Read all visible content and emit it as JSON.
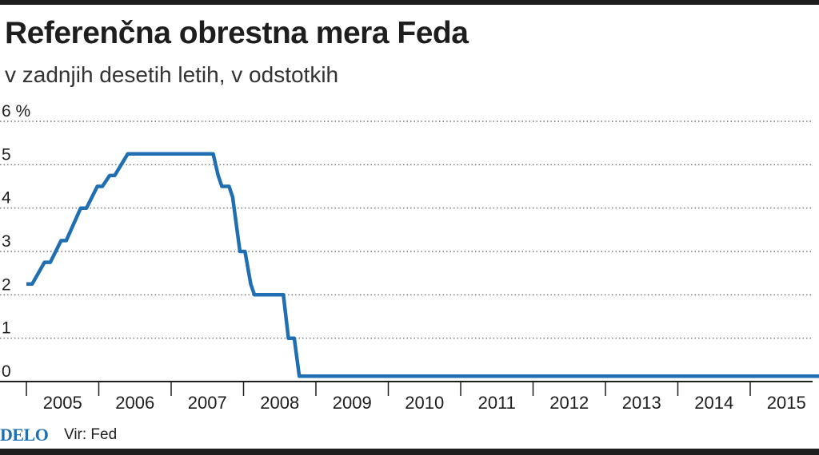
{
  "header": {
    "title": "Referenčna obrestna mera Feda",
    "subtitle": "v zadnjih desetih letih, v odstotkih"
  },
  "footer": {
    "logo": "DELO",
    "source": "Vir: Fed"
  },
  "colors": {
    "line": "#1f6fb2",
    "logo": "#1f6fb2",
    "text": "#1e1e1e",
    "grid": "#555555"
  },
  "chart_data": {
    "type": "line",
    "title": "Referenčna obrestna mera Feda",
    "subtitle": "v zadnjih desetih letih, v odstotkih",
    "ylim": [
      0,
      6
    ],
    "xlim": [
      2004.5,
      2015.5
    ],
    "y_ticks": [
      {
        "value": 6,
        "label": "6 %"
      },
      {
        "value": 5,
        "label": "5"
      },
      {
        "value": 4,
        "label": "4"
      },
      {
        "value": 3,
        "label": "3"
      },
      {
        "value": 2,
        "label": "2"
      },
      {
        "value": 1,
        "label": "1"
      },
      {
        "value": 0,
        "label": "0"
      }
    ],
    "x_tick_labels": [
      "2005",
      "2006",
      "2007",
      "2008",
      "2009",
      "2010",
      "2011",
      "2012",
      "2013",
      "2014",
      "2015"
    ],
    "grid": "horizontal dotted",
    "series": [
      {
        "values": [
          [
            2004.5,
            2.25
          ],
          [
            2004.58,
            2.25
          ],
          [
            2004.75,
            2.75
          ],
          [
            2004.83,
            2.75
          ],
          [
            2004.98,
            3.25
          ],
          [
            2005.05,
            3.25
          ],
          [
            2005.25,
            4.0
          ],
          [
            2005.33,
            4.0
          ],
          [
            2005.48,
            4.5
          ],
          [
            2005.55,
            4.5
          ],
          [
            2005.65,
            4.75
          ],
          [
            2005.72,
            4.75
          ],
          [
            2005.9,
            5.25
          ],
          [
            2007.08,
            5.25
          ],
          [
            2007.15,
            4.75
          ],
          [
            2007.2,
            4.5
          ],
          [
            2007.3,
            4.5
          ],
          [
            2007.35,
            4.25
          ],
          [
            2007.45,
            3.0
          ],
          [
            2007.52,
            3.0
          ],
          [
            2007.6,
            2.25
          ],
          [
            2007.65,
            2.0
          ],
          [
            2008.05,
            2.0
          ],
          [
            2008.12,
            1.0
          ],
          [
            2008.2,
            1.0
          ],
          [
            2008.27,
            0.125
          ],
          [
            2015.5,
            0.125
          ]
        ]
      }
    ]
  }
}
